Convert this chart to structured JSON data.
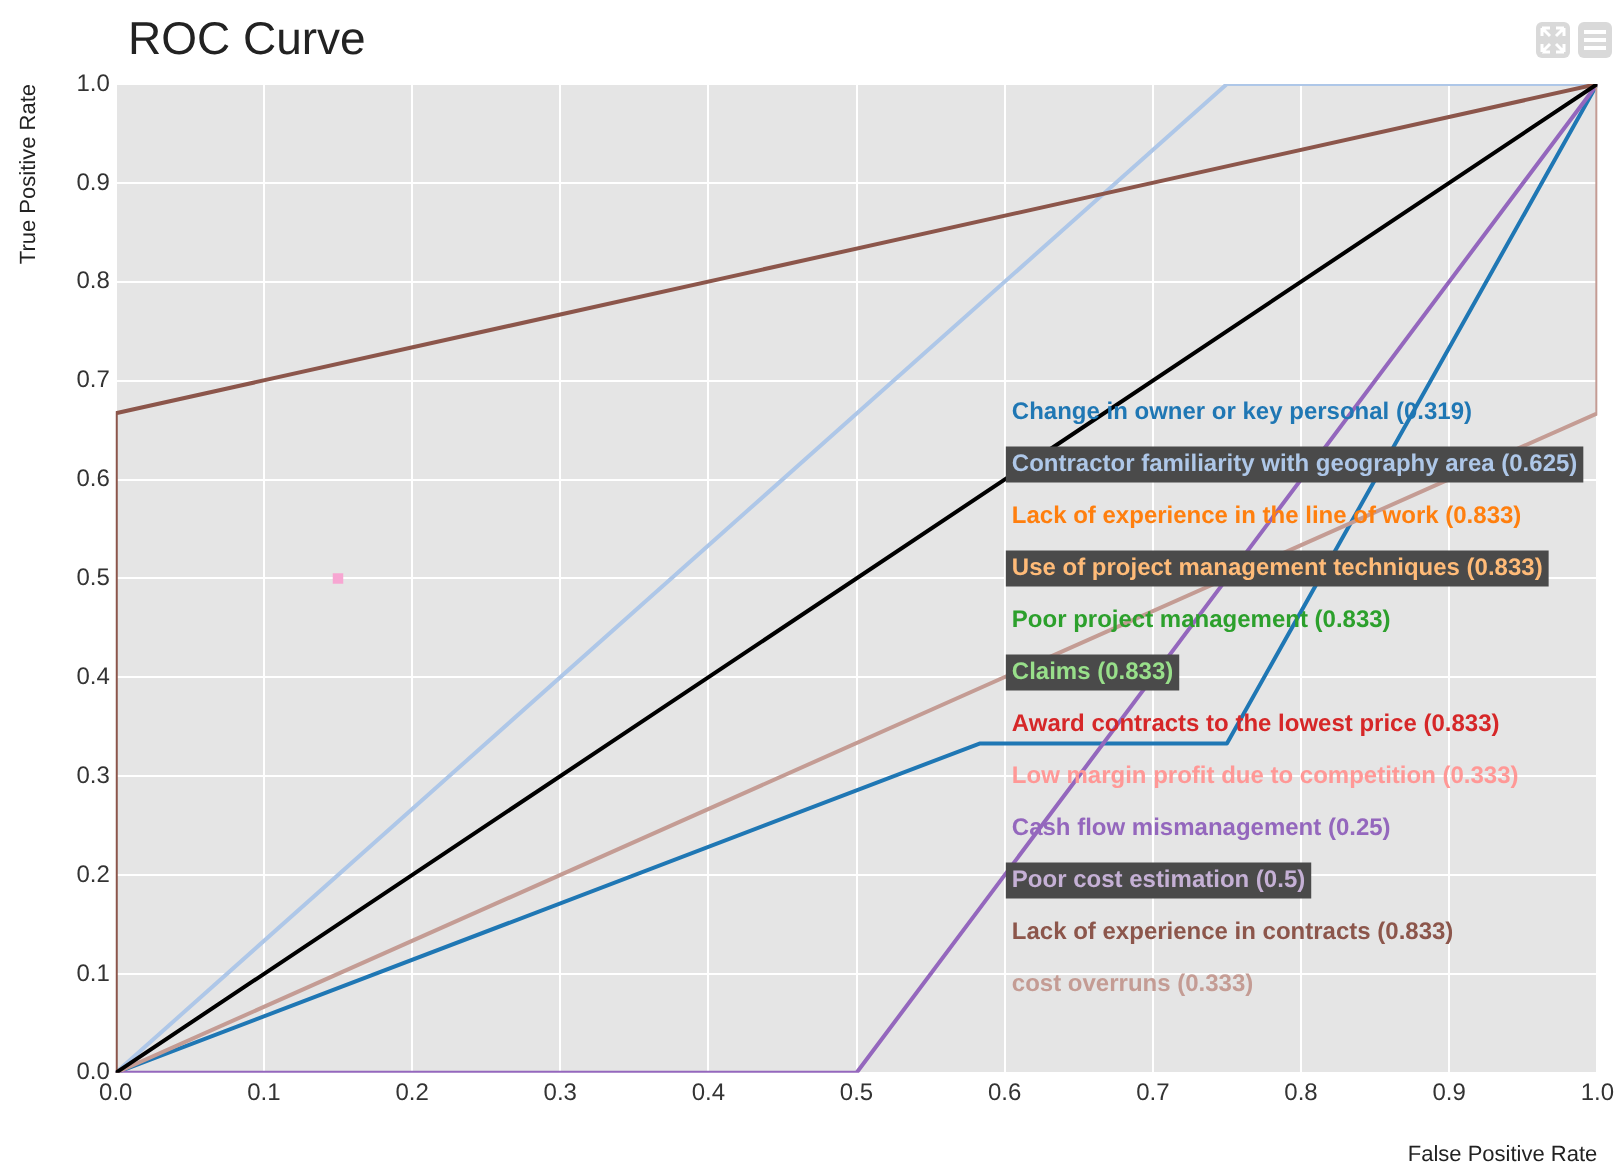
{
  "chart_data": {
    "type": "line",
    "title": "ROC Curve",
    "xlabel": "False Positive Rate",
    "ylabel": "True Positive Rate",
    "xlim": [
      0,
      1
    ],
    "ylim": [
      0,
      1
    ],
    "xticks": [
      {
        "value": 0,
        "label": "0.0"
      },
      0.1,
      0.2,
      0.3,
      0.4,
      0.5,
      0.6,
      0.7,
      0.8,
      0.9,
      {
        "value": 1,
        "label": "1.0"
      }
    ],
    "yticks": [
      {
        "value": 0,
        "label": "0.0"
      },
      0.1,
      0.2,
      0.3,
      0.4,
      0.5,
      0.6,
      0.7,
      0.8,
      0.9,
      {
        "value": 1,
        "label": "1.0"
      }
    ],
    "grid": true,
    "legend": "right",
    "series": [
      {
        "name": "Change in owner or key personal (0.319)",
        "color": "#1f77b4",
        "x": [
          0,
          0.583,
          0.75,
          1
        ],
        "values": [
          0,
          0.333,
          0.333,
          1
        ]
      },
      {
        "name": "Contractor familiarity with geography area (0.625)",
        "color": "#aec7e8",
        "x": [
          0,
          0.75,
          1
        ],
        "values": [
          0,
          1,
          1
        ]
      },
      {
        "name": "Lack of experience in the line of work (0.833)",
        "color": "#ff7f0e",
        "values": [
          null,
          null,
          null
        ]
      },
      {
        "name": "Use of project management techniques (0.833)",
        "color": "#ffbb78",
        "values": [
          null,
          null,
          null
        ]
      },
      {
        "name": "Poor project management (0.833)",
        "color": "#2ca02c",
        "values": [
          null,
          null,
          null
        ]
      },
      {
        "name": "Claims (0.833)",
        "color": "#98df8a",
        "values": [
          null,
          null,
          null
        ]
      },
      {
        "name": "Award contracts to the lowest price (0.833)",
        "color": "#d62728",
        "values": [
          null,
          null,
          null
        ]
      },
      {
        "name": "Low margin profit due to competition (0.333)",
        "color": "#ff9896",
        "values": [
          null,
          null,
          null
        ]
      },
      {
        "name": "Cash flow mismanagement (0.25)",
        "color": "#9467bd",
        "x": [
          0,
          0.5,
          1
        ],
        "values": [
          0,
          0,
          1
        ]
      },
      {
        "name": "Poor cost estimation (0.5)",
        "color": "#c5b0d5",
        "values": [
          null,
          null
        ]
      },
      {
        "name": "Lack of experience in contracts (0.833)",
        "color": "#8c564b",
        "x": [
          0,
          0,
          1
        ],
        "values": [
          0,
          0.667,
          1
        ]
      },
      {
        "name": "cost overruns (0.333)",
        "color": "#c49c94",
        "x": [
          0,
          1,
          1
        ],
        "values": [
          0,
          0.667,
          1
        ]
      },
      {
        "color": "#000000",
        "x": [
          0,
          1
        ],
        "values": [
          0,
          1
        ]
      },
      {
        "type": "scatter",
        "marker": "square",
        "color": "#f7a6d2",
        "x": [
          0.15
        ],
        "values": [
          0.5
        ]
      }
    ]
  }
}
